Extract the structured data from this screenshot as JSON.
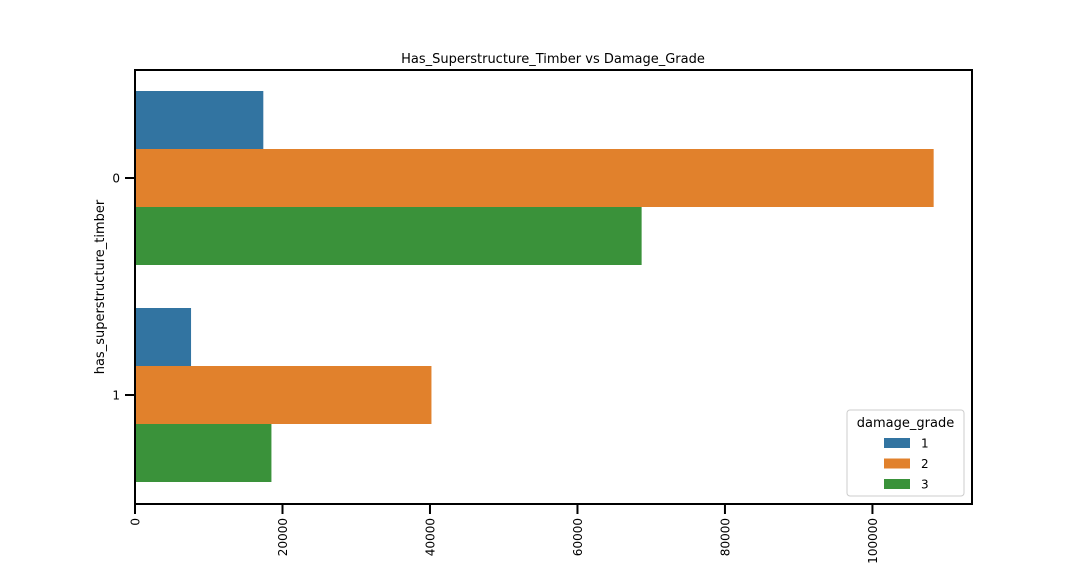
{
  "chart_data": {
    "type": "bar",
    "orientation": "horizontal",
    "title": "Has_Superstructure_Timber vs Damage_Grade",
    "xlabel": "",
    "ylabel": "has_superstructure_timber",
    "categories": [
      "0",
      "1"
    ],
    "xlim": [
      0,
      113500
    ],
    "xticks": [
      0,
      20000,
      40000,
      60000,
      80000,
      100000
    ],
    "xtick_labels": [
      "0",
      "20000",
      "40000",
      "60000",
      "80000",
      "100000"
    ],
    "grid": false,
    "legend": {
      "title": "damage_grade",
      "placement": "lower-right"
    },
    "series": [
      {
        "name": "1",
        "color": "#3274a1",
        "values": [
          17400,
          7600
        ]
      },
      {
        "name": "2",
        "color": "#e1812c",
        "values": [
          108300,
          40200
        ]
      },
      {
        "name": "3",
        "color": "#3a923a",
        "values": [
          68700,
          18500
        ]
      }
    ]
  }
}
